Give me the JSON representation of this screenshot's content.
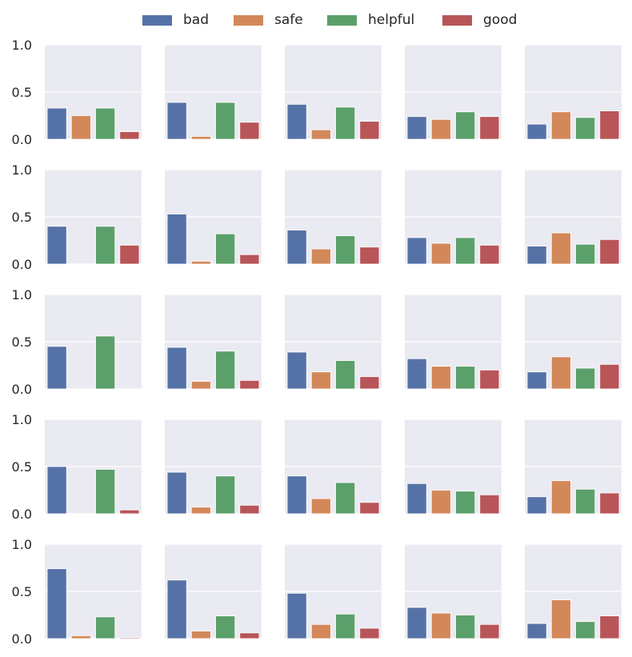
{
  "chart_data": {
    "type": "bar",
    "layout": "grid-5x5",
    "categories": [
      "bad",
      "safe",
      "helpful",
      "good"
    ],
    "colors": [
      "#5572a6",
      "#d3885a",
      "#5b9f6a",
      "#b85558"
    ],
    "legend": {
      "placement": "top-center",
      "labels": [
        "bad",
        "safe",
        "helpful",
        "good"
      ]
    },
    "yticks": [
      "0.0",
      "0.5",
      "1.0"
    ],
    "ylim": [
      0,
      1
    ],
    "grid": true,
    "panels": [
      [
        [
          0.33,
          0.25,
          0.33,
          0.08
        ],
        [
          0.39,
          0.03,
          0.39,
          0.18
        ],
        [
          0.37,
          0.1,
          0.34,
          0.19
        ],
        [
          0.24,
          0.21,
          0.29,
          0.24
        ],
        [
          0.16,
          0.29,
          0.23,
          0.3
        ]
      ],
      [
        [
          0.4,
          0.0,
          0.4,
          0.2
        ],
        [
          0.53,
          0.03,
          0.32,
          0.1
        ],
        [
          0.36,
          0.16,
          0.3,
          0.18
        ],
        [
          0.28,
          0.22,
          0.28,
          0.2
        ],
        [
          0.19,
          0.33,
          0.21,
          0.26
        ]
      ],
      [
        [
          0.45,
          0.0,
          0.56,
          0.0
        ],
        [
          0.44,
          0.08,
          0.4,
          0.09
        ],
        [
          0.39,
          0.18,
          0.3,
          0.13
        ],
        [
          0.32,
          0.24,
          0.24,
          0.2
        ],
        [
          0.18,
          0.34,
          0.22,
          0.26
        ]
      ],
      [
        [
          0.5,
          0.0,
          0.47,
          0.04
        ],
        [
          0.44,
          0.07,
          0.4,
          0.09
        ],
        [
          0.4,
          0.16,
          0.33,
          0.12
        ],
        [
          0.32,
          0.25,
          0.24,
          0.2
        ],
        [
          0.18,
          0.35,
          0.26,
          0.22
        ]
      ],
      [
        [
          0.74,
          0.03,
          0.23,
          0.01
        ],
        [
          0.62,
          0.08,
          0.24,
          0.06
        ],
        [
          0.48,
          0.15,
          0.26,
          0.11
        ],
        [
          0.33,
          0.27,
          0.25,
          0.15
        ],
        [
          0.16,
          0.41,
          0.18,
          0.24
        ]
      ]
    ]
  }
}
